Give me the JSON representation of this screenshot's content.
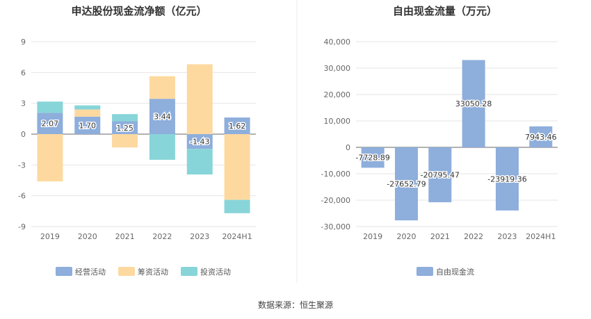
{
  "source_label": "数据来源：恒生聚源",
  "colors": {
    "operating": "#8eaedc",
    "financing": "#fdd9a0",
    "investing": "#88d5d9",
    "fcf": "#8eaedc",
    "grid": "#e6e6e6",
    "axis": "#666666"
  },
  "chart_data": [
    {
      "type": "bar",
      "stacked": true,
      "title": "申达股份现金流净额（亿元）",
      "categories": [
        "2019",
        "2020",
        "2021",
        "2022",
        "2023",
        "2024H1"
      ],
      "ylim": [
        -9,
        9
      ],
      "yticks": [
        9,
        6,
        3,
        0,
        -3,
        -6,
        -9
      ],
      "grid": true,
      "legend_position": "bottom",
      "series": [
        {
          "name": "经营活动",
          "values": [
            2.07,
            1.7,
            1.25,
            3.44,
            -1.43,
            1.62
          ],
          "labels": [
            "2.07",
            "1.70",
            "1.25",
            "3.44",
            "-1.43",
            "1.62"
          ]
        },
        {
          "name": "筹资活动",
          "values": [
            -4.6,
            0.7,
            -1.3,
            2.2,
            6.8,
            -6.4
          ]
        },
        {
          "name": "投资活动",
          "values": [
            1.1,
            0.4,
            0.7,
            -2.5,
            -2.5,
            -1.3
          ]
        }
      ]
    },
    {
      "type": "bar",
      "title": "自由现金流量（万元）",
      "categories": [
        "2019",
        "2020",
        "2021",
        "2022",
        "2023",
        "2024H1"
      ],
      "ylim": [
        -30000,
        40000
      ],
      "yticks": [
        "40,000",
        "30,000",
        "20,000",
        "10,000",
        "0",
        "-10,000",
        "-20,000",
        "-30,000"
      ],
      "yticks_values": [
        40000,
        30000,
        20000,
        10000,
        0,
        -10000,
        -20000,
        -30000
      ],
      "grid": true,
      "legend_position": "bottom",
      "series": [
        {
          "name": "自由现金流",
          "values": [
            -7728.89,
            -27652.79,
            -20795.47,
            33050.28,
            -23919.36,
            7943.46
          ],
          "labels": [
            "-7728.89",
            "-27652.79",
            "-20795.47",
            "33050.28",
            "-23919.36",
            "7943.46"
          ]
        }
      ]
    }
  ]
}
